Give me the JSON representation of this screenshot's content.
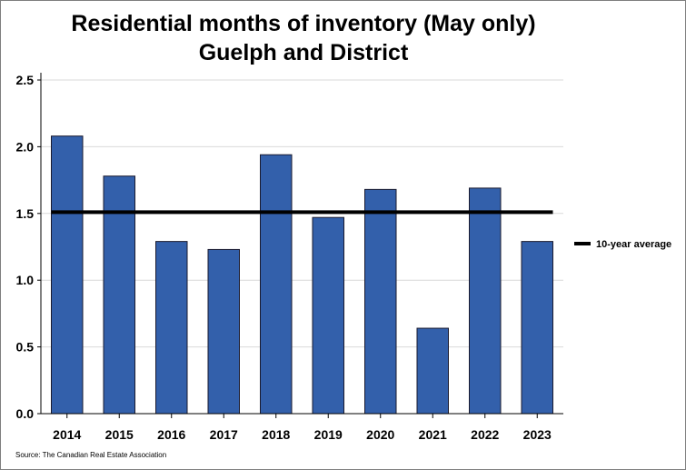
{
  "chart_data": {
    "type": "bar",
    "title": "Residential months of inventory (May only)",
    "subtitle": "Guelph and District",
    "categories": [
      "2014",
      "2015",
      "2016",
      "2017",
      "2018",
      "2019",
      "2020",
      "2021",
      "2022",
      "2023"
    ],
    "values": [
      2.08,
      1.78,
      1.29,
      1.23,
      1.94,
      1.47,
      1.68,
      0.64,
      1.69,
      1.29
    ],
    "reference_line": {
      "label": "10-year average",
      "value": 1.51
    },
    "ylim": [
      0,
      2.5
    ],
    "yticks": [
      "0.0",
      "0.5",
      "1.0",
      "1.5",
      "2.0",
      "2.5"
    ],
    "ytick_values": [
      0,
      0.5,
      1.0,
      1.5,
      2.0,
      2.5
    ],
    "xlabel": "",
    "ylabel": "",
    "grid": true,
    "legend_position": "right",
    "colors": {
      "bar": "#3360ab",
      "bar_edge": "#1a1a2e",
      "line": "#000000",
      "grid": "#d9d9d9"
    }
  },
  "source": "Source: The Canadian Real Estate Association"
}
